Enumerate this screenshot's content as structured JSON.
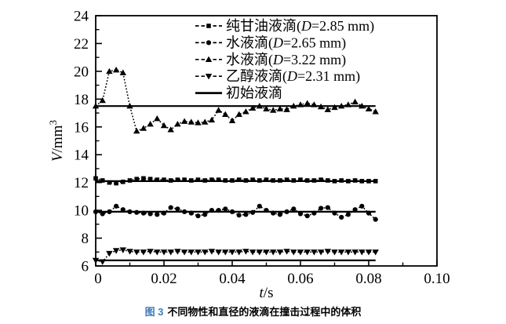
{
  "caption": {
    "figure_label": "图 3",
    "text": "不同物性和直径的液滴在撞击过程中的体积"
  },
  "chart_data": {
    "type": "line",
    "title": "",
    "xlabel_parts": {
      "variable": "t",
      "unit": "/s"
    },
    "ylabel_parts": {
      "variable": "V",
      "unit": "/mm",
      "exponent": "3"
    },
    "xlim": [
      0,
      0.1
    ],
    "ylim": [
      6,
      24
    ],
    "x_tick_values": [
      0,
      0.02,
      0.04,
      0.06,
      0.08,
      0.1
    ],
    "x_tick_labels": [
      "0",
      "0.02",
      "0.04",
      "0.06",
      "0.08",
      "0.10"
    ],
    "x_minor_step": 0.01,
    "y_tick_values": [
      6,
      8,
      10,
      12,
      14,
      16,
      18,
      20,
      22,
      24
    ],
    "y_tick_labels": [
      "6",
      "8",
      "10",
      "12",
      "14",
      "16",
      "18",
      "20",
      "22",
      "24"
    ],
    "y_minor_step": 1,
    "grid": false,
    "legend_position": "top-inside",
    "axis_color": "#000000",
    "x": [
      0,
      0.002,
      0.004,
      0.006,
      0.008,
      0.01,
      0.012,
      0.014,
      0.016,
      0.018,
      0.02,
      0.022,
      0.024,
      0.026,
      0.028,
      0.03,
      0.032,
      0.034,
      0.036,
      0.038,
      0.04,
      0.042,
      0.044,
      0.046,
      0.048,
      0.05,
      0.052,
      0.054,
      0.056,
      0.058,
      0.06,
      0.062,
      0.064,
      0.066,
      0.068,
      0.07,
      0.072,
      0.074,
      0.076,
      0.078,
      0.08,
      0.082
    ],
    "series": [
      {
        "name": "纯甘油液滴",
        "diameter_label": "D",
        "diameter": "2.85",
        "diameter_unit": "mm",
        "marker": "square",
        "line_style": "dotted",
        "color": "#000000",
        "values": [
          12.3,
          12.15,
          12.0,
          11.95,
          12.05,
          12.15,
          12.25,
          12.3,
          12.25,
          12.2,
          12.2,
          12.15,
          12.2,
          12.2,
          12.15,
          12.2,
          12.15,
          12.2,
          12.2,
          12.15,
          12.15,
          12.2,
          12.15,
          12.2,
          12.15,
          12.2,
          12.15,
          12.15,
          12.2,
          12.15,
          12.2,
          12.15,
          12.15,
          12.2,
          12.15,
          12.1,
          12.15,
          12.1,
          12.15,
          12.1,
          12.1,
          12.1
        ]
      },
      {
        "name": "水液滴",
        "diameter_label": "D",
        "diameter": "2.65",
        "diameter_unit": "mm",
        "marker": "circle",
        "line_style": "dotted",
        "color": "#000000",
        "values": [
          9.9,
          9.75,
          9.9,
          10.3,
          10.05,
          9.9,
          9.85,
          9.8,
          9.75,
          9.7,
          9.8,
          10.2,
          10.1,
          9.9,
          9.8,
          9.6,
          9.7,
          10.0,
          10.0,
          10.1,
          9.9,
          9.65,
          9.7,
          9.85,
          10.3,
          10.0,
          9.8,
          9.7,
          9.9,
          10.1,
          9.75,
          9.6,
          9.8,
          10.15,
          10.2,
          9.8,
          9.5,
          9.7,
          10.05,
          10.3,
          9.8,
          9.35
        ]
      },
      {
        "name": "水液滴",
        "diameter_label": "D",
        "diameter": "3.22",
        "diameter_unit": "mm",
        "marker": "triangle-up",
        "line_style": "dotted",
        "color": "#000000",
        "values": [
          17.5,
          17.9,
          20.0,
          20.1,
          19.9,
          17.5,
          15.7,
          15.9,
          16.2,
          16.6,
          16.1,
          15.8,
          16.2,
          16.4,
          16.35,
          16.3,
          16.35,
          16.5,
          17.2,
          16.9,
          16.45,
          16.9,
          17.1,
          17.35,
          17.5,
          17.3,
          17.2,
          17.3,
          17.25,
          17.5,
          17.6,
          17.7,
          17.6,
          17.45,
          17.25,
          17.4,
          17.5,
          17.6,
          17.8,
          17.5,
          17.3,
          17.1
        ]
      },
      {
        "name": "乙醇液滴",
        "diameter_label": "D",
        "diameter": "2.31",
        "diameter_unit": "mm",
        "marker": "triangle-down",
        "line_style": "dotted",
        "color": "#000000",
        "values": [
          6.4,
          6.3,
          6.9,
          7.1,
          7.15,
          7.05,
          7.0,
          7.0,
          7.05,
          7.0,
          7.0,
          7.0,
          7.05,
          7.0,
          7.0,
          7.0,
          7.0,
          7.05,
          7.0,
          7.0,
          7.0,
          7.0,
          7.05,
          7.0,
          7.0,
          7.0,
          7.0,
          7.0,
          7.05,
          7.0,
          7.0,
          7.0,
          7.0,
          7.0,
          7.05,
          7.0,
          7.0,
          7.0,
          7.0,
          7.0,
          7.0,
          7.0
        ]
      }
    ],
    "initial_droplet": {
      "name": "初始液滴",
      "line_style": "solid",
      "color": "#000000",
      "levels": [
        17.5,
        12.1,
        9.9,
        6.4
      ]
    }
  }
}
